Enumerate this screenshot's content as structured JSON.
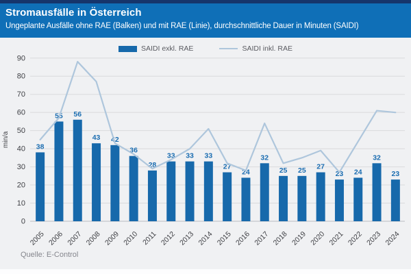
{
  "header": {
    "title": "Stromausfälle in Österreich",
    "subtitle": "Ungeplante Ausfälle ohne RAE (Balken) und mit RAE (Linie), durchschnittliche Dauer in Minuten (SAIDI)"
  },
  "legend": [
    {
      "label": "SAIDI exkl. RAE",
      "swatch": "bar-swatch-icon"
    },
    {
      "label": "SAIDI inkl. RAE",
      "swatch": "line-swatch-icon"
    }
  ],
  "footer": {
    "source": "Quelle: E-Control"
  },
  "colors": {
    "top_strip": "#16356b",
    "header_bg": "#0f6fb7",
    "header_text": "#ffffff",
    "bar": "#1769ab",
    "line": "#aec6dc",
    "bar_label": "#1b6db1",
    "background": "#f0f1f3",
    "grid": "#d9dadc",
    "baseline": "#b9bbc0",
    "axis_text": "#3f4045",
    "source_text": "#85868d"
  },
  "chart_data": {
    "type": "bar",
    "subtype": "combo-bar-line",
    "categories": [
      "2005",
      "2006",
      "2007",
      "2008",
      "2009",
      "2010",
      "2011",
      "2012",
      "2013",
      "2014",
      "2015",
      "2016",
      "2017",
      "2018",
      "2019",
      "2020",
      "2021",
      "2022",
      "2023",
      "2024"
    ],
    "series": [
      {
        "name": "SAIDI exkl. RAE",
        "type": "bar",
        "values": [
          38,
          55,
          56,
          43,
          42,
          36,
          28,
          33,
          33,
          33,
          27,
          24,
          32,
          25,
          25,
          27,
          23,
          24,
          32,
          23
        ],
        "data_labels_shown": true
      },
      {
        "name": "SAIDI inkl. RAE",
        "type": "line",
        "values": [
          45,
          57,
          88,
          77,
          43,
          37,
          29,
          34,
          40,
          51,
          32,
          28,
          54,
          32,
          35,
          39,
          27,
          44,
          61,
          60
        ],
        "data_labels_shown": false
      }
    ],
    "title": "Stromausfälle in Österreich",
    "xlabel": "",
    "ylabel": "min/a",
    "ylim": [
      0,
      90
    ],
    "ytick_step": 10,
    "grid": true,
    "legend_position": "top"
  }
}
